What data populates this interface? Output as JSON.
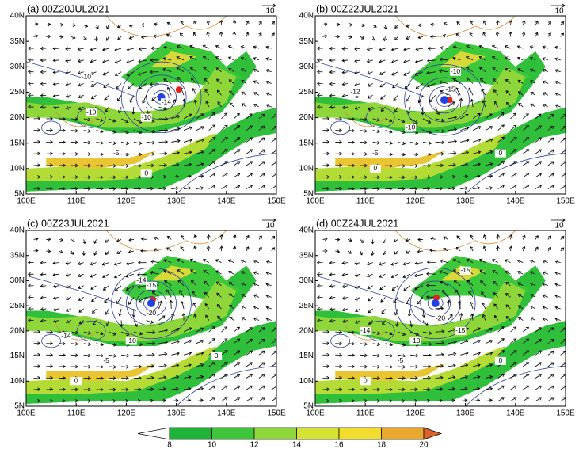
{
  "panels": [
    {
      "title": "(a) 00Z20JUL2021",
      "reference_vector": "10",
      "contour_labels": [
        "-10",
        "-14",
        "-10",
        "-10",
        "-5",
        "0"
      ]
    },
    {
      "title": "(b) 00Z22JUL2021",
      "reference_vector": "10",
      "contour_labels": [
        "-10",
        "-15",
        "-12",
        "-10",
        "-5",
        "0",
        "0"
      ]
    },
    {
      "title": "(c) 00Z23JUL2021",
      "reference_vector": "10",
      "contour_labels": [
        "-14",
        "-15",
        "-20",
        "-14",
        "-10",
        "-5",
        "0",
        "0"
      ]
    },
    {
      "title": "(d) 00Z24JUL2021",
      "reference_vector": "10",
      "contour_labels": [
        "-15",
        "-20",
        "-14",
        "-10",
        "-15",
        "-5",
        "0",
        "0"
      ]
    }
  ],
  "lat_ticks": [
    "40N",
    "35N",
    "30N",
    "25N",
    "20N",
    "15N",
    "10N",
    "5N"
  ],
  "lon_ticks": [
    "100E",
    "110E",
    "120E",
    "130E",
    "140E",
    "150E"
  ],
  "colorbar_ticks": [
    8,
    10,
    12,
    14,
    16,
    18,
    20
  ]
}
